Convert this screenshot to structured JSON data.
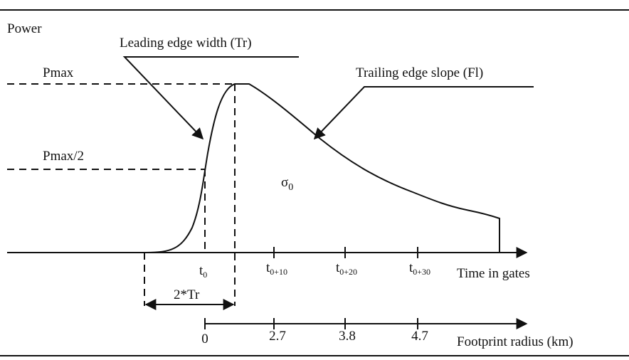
{
  "axis_label": "Power",
  "leading_edge_label": "Leading edge width (Tr)",
  "pmax_label": "Pmax",
  "trailing_edge_label": "Trailing edge slope (Fl)",
  "pmax_half_label": "Pmax/2",
  "sigma_label": {
    "base": "σ",
    "sub": "0"
  },
  "time_ticks": [
    {
      "base": "t",
      "sub": "0"
    },
    {
      "base": "t",
      "sub": "0+10"
    },
    {
      "base": "t",
      "sub": "0+20"
    },
    {
      "base": "t",
      "sub": "0+30"
    }
  ],
  "time_axis_label": "Time in gates",
  "width_label": "2*Tr",
  "footprint_ticks": [
    "0",
    "2.7",
    "3.8",
    "4.7"
  ],
  "footprint_axis_label": "Footprint radius (km)"
}
